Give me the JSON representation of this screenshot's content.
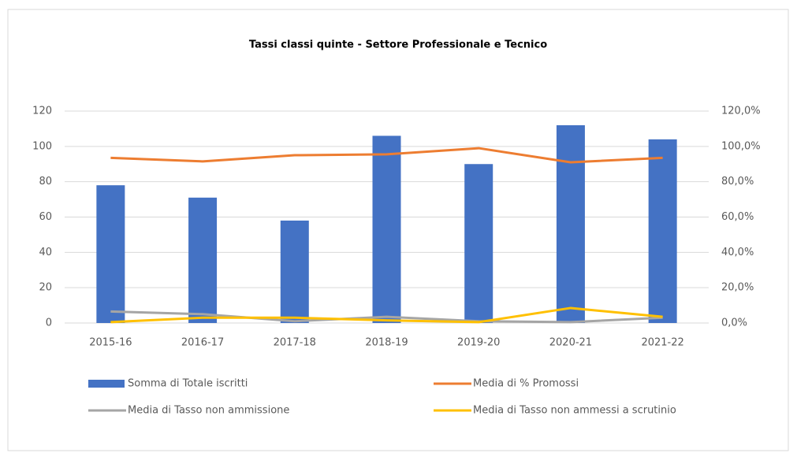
{
  "chart_data": {
    "type": "combo",
    "title": "Tassi classi quinte - Settore Professionale e Tecnico",
    "categories": [
      "2015-16",
      "2016-17",
      "2017-18",
      "2018-19",
      "2019-20",
      "2020-21",
      "2021-22"
    ],
    "series": [
      {
        "name": "Somma di Totale iscritti",
        "type": "bar",
        "color": "#4472c4",
        "values": [
          78,
          71,
          58,
          106,
          90,
          112,
          104
        ]
      },
      {
        "name": "Media di % Promossi",
        "type": "line",
        "axis": "y2",
        "color": "#ed7d31",
        "values": [
          93.5,
          91.5,
          95,
          95.5,
          99,
          91,
          93.5
        ]
      },
      {
        "name": "Media di Tasso non ammissione",
        "type": "line",
        "axis": "y2",
        "color": "#a5a5a5",
        "values": [
          6.5,
          5,
          1,
          3.5,
          1,
          0.5,
          3
        ]
      },
      {
        "name": "Media di Tasso non ammessi a scrutinio",
        "type": "line",
        "axis": "y2",
        "color": "#ffc000",
        "values": [
          0.5,
          3,
          3,
          1.5,
          0.5,
          8.5,
          3.5
        ]
      }
    ],
    "ylim": [
      0,
      120
    ],
    "yticks": [
      0,
      20,
      40,
      60,
      80,
      100,
      120
    ],
    "y2lim": [
      0,
      120
    ],
    "y2ticks": [
      {
        "value": 0,
        "label": "0,0%"
      },
      {
        "value": 20,
        "label": "20,0%"
      },
      {
        "value": 40,
        "label": "40,0%"
      },
      {
        "value": 60,
        "label": "60,0%"
      },
      {
        "value": 80,
        "label": "80,0%"
      },
      {
        "value": 100,
        "label": "100,0%"
      },
      {
        "value": 120,
        "label": "120,0%"
      }
    ],
    "grid": true,
    "legend": "bottom"
  }
}
